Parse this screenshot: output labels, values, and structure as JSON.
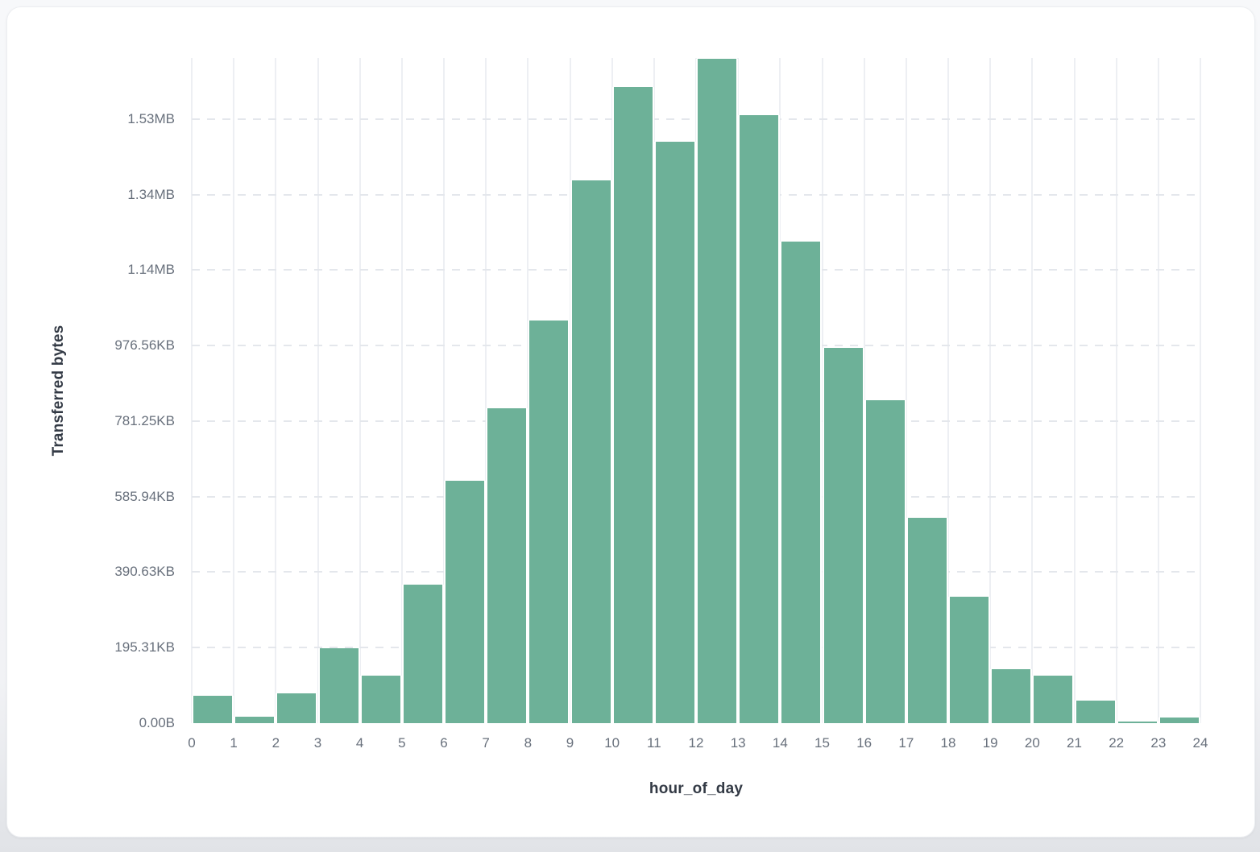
{
  "chart_data": {
    "type": "bar",
    "title": "",
    "xlabel": "hour_of_day",
    "ylabel": "Transferred bytes",
    "categories": [
      0,
      1,
      2,
      3,
      4,
      5,
      6,
      7,
      8,
      9,
      10,
      11,
      12,
      13,
      14,
      15,
      16,
      17,
      18,
      19,
      20,
      21,
      22,
      23
    ],
    "values_bytes": [
      73000,
      16500,
      78500,
      198000,
      126000,
      368000,
      642000,
      835000,
      1067000,
      1438000,
      1686000,
      1540000,
      1759000,
      1610000,
      1276000,
      995000,
      856000,
      544000,
      334000,
      142000,
      126000,
      59000,
      5000,
      14500
    ],
    "x_tick_labels": [
      "0",
      "1",
      "2",
      "3",
      "4",
      "5",
      "6",
      "7",
      "8",
      "9",
      "10",
      "11",
      "12",
      "13",
      "14",
      "15",
      "16",
      "17",
      "18",
      "19",
      "20",
      "21",
      "22",
      "23",
      "24"
    ],
    "y_tick_labels": [
      "0.00B",
      "195.31KB",
      "390.63KB",
      "585.94KB",
      "781.25KB",
      "976.56KB",
      "1.14MB",
      "1.34MB",
      "1.53MB"
    ],
    "y_tick_step_bytes": 200000,
    "ylim_bytes": [
      0,
      1762133
    ],
    "xlim": [
      0,
      24
    ],
    "grid": {
      "vertical": "solid",
      "horizontal": "dashed"
    },
    "legend": "none",
    "bar_color": "#6db198",
    "bar_gap_color": "#ffffff"
  },
  "colors": {
    "vgrid": "#edeff3",
    "hgrid": "#e4e7ec",
    "tick_text": "#68707c",
    "axis_title_text": "#333a45",
    "card_bg": "#ffffff",
    "page_bg": "#f1f2f5"
  }
}
